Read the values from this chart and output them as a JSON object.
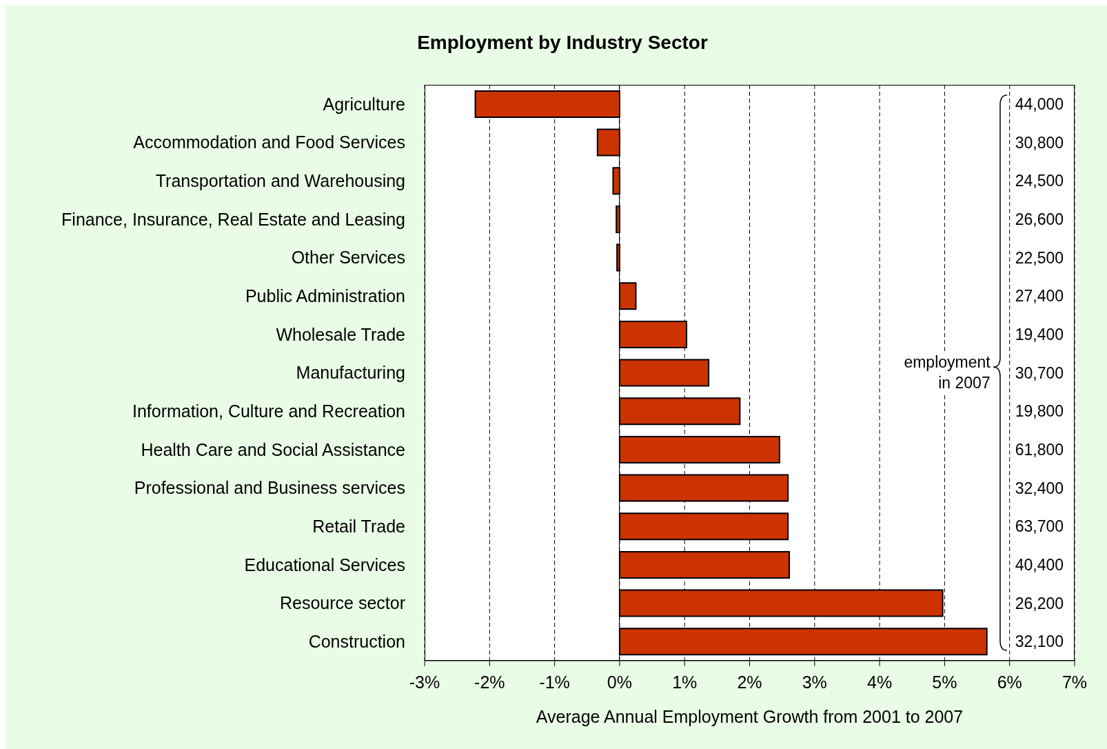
{
  "chart_data": {
    "type": "bar",
    "orientation": "horizontal",
    "title": "Employment by Industry Sector",
    "xlabel": "Average Annual Employment Growth from 2001 to 2007",
    "categories": [
      "Agriculture",
      "Accommodation and Food Services",
      "Transportation and Warehousing",
      "Finance, Insurance, Real Estate and Leasing",
      "Other Services",
      "Public Administration",
      "Wholesale Trade",
      "Manufacturing",
      "Information, Culture and Recreation",
      "Health Care and Social Assistance",
      "Professional and Business services",
      "Retail Trade",
      "Educational Services",
      "Resource sector",
      "Construction"
    ],
    "values": [
      -2.22,
      -0.34,
      -0.1,
      -0.05,
      -0.04,
      0.25,
      1.03,
      1.37,
      1.85,
      2.46,
      2.59,
      2.59,
      2.61,
      4.97,
      5.65
    ],
    "color": "#cc3300",
    "xlim": [
      -3,
      7
    ],
    "xticks": [
      {
        "value": -3,
        "label": "-3%"
      },
      {
        "value": -2,
        "label": "-2%"
      },
      {
        "value": -1,
        "label": "-1%"
      },
      {
        "value": 0,
        "label": "0%"
      },
      {
        "value": 1,
        "label": "1%"
      },
      {
        "value": 2,
        "label": "2%"
      },
      {
        "value": 3,
        "label": "3%"
      },
      {
        "value": 4,
        "label": "4%"
      },
      {
        "value": 5,
        "label": "5%"
      },
      {
        "value": 6,
        "label": "6%"
      },
      {
        "value": 7,
        "label": "7%"
      }
    ],
    "grid": "x",
    "annotations": [
      "44,000",
      "30,800",
      "24,500",
      "26,600",
      "22,500",
      "27,400",
      "19,400",
      "30,700",
      "19,800",
      "61,800",
      "32,400",
      "63,700",
      "40,400",
      "26,200",
      "32,100",
      "employment\nin 2007"
    ]
  }
}
